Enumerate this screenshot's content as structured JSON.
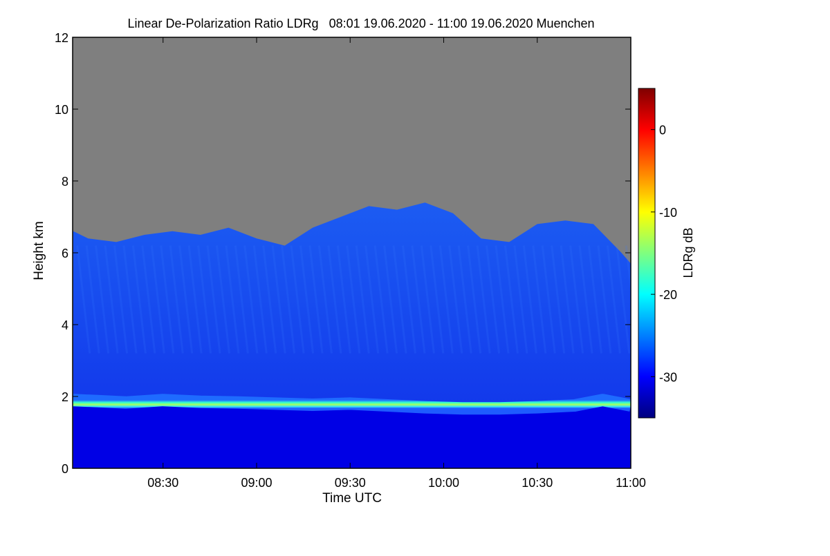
{
  "chart_data": {
    "type": "heatmap",
    "title": "Linear De-Polarization Ratio LDRg   08:01 19.06.2020 - 11:00 19.06.2020 Muenchen",
    "xlabel": "Time UTC",
    "ylabel": "Height km",
    "x_ticks": [
      "08:30",
      "09:00",
      "09:30",
      "10:00",
      "10:30",
      "11:00"
    ],
    "x_tick_hours": [
      8.5,
      9.0,
      9.5,
      10.0,
      10.5,
      11.0
    ],
    "xlim_hours": [
      8.0167,
      11.0
    ],
    "ylim": [
      0,
      12
    ],
    "y_ticks": [
      0,
      2,
      4,
      6,
      8,
      10,
      12
    ],
    "colorbar": {
      "label": "LDRg dB",
      "range": [
        -35,
        5
      ],
      "ticks": [
        0,
        -10,
        -20,
        -30
      ],
      "colormap": [
        "#00007f",
        "#0000ff",
        "#007fff",
        "#00ffff",
        "#7fff7f",
        "#ffff00",
        "#ff7f00",
        "#ff0000",
        "#7f0000"
      ]
    },
    "no_signal_color": "#7f7f7f",
    "features": {
      "cloud_top_km": [
        [
          8.02,
          6.6
        ],
        [
          8.1,
          6.4
        ],
        [
          8.25,
          6.3
        ],
        [
          8.4,
          6.5
        ],
        [
          8.55,
          6.6
        ],
        [
          8.7,
          6.5
        ],
        [
          8.85,
          6.7
        ],
        [
          9.0,
          6.4
        ],
        [
          9.15,
          6.2
        ],
        [
          9.3,
          6.7
        ],
        [
          9.45,
          7.0
        ],
        [
          9.6,
          7.3
        ],
        [
          9.75,
          7.2
        ],
        [
          9.9,
          7.4
        ],
        [
          10.05,
          7.1
        ],
        [
          10.2,
          6.4
        ],
        [
          10.35,
          6.3
        ],
        [
          10.5,
          6.8
        ],
        [
          10.65,
          6.9
        ],
        [
          10.8,
          6.8
        ],
        [
          10.95,
          6.0
        ],
        [
          11.0,
          5.7
        ]
      ],
      "boundary_layer_top_km": [
        [
          8.02,
          1.95
        ],
        [
          8.15,
          1.92
        ],
        [
          8.3,
          1.88
        ],
        [
          8.5,
          1.95
        ],
        [
          8.7,
          1.9
        ],
        [
          8.9,
          1.88
        ],
        [
          9.1,
          1.85
        ],
        [
          9.3,
          1.82
        ],
        [
          9.5,
          1.85
        ],
        [
          9.7,
          1.8
        ],
        [
          9.9,
          1.75
        ],
        [
          10.1,
          1.72
        ],
        [
          10.3,
          1.72
        ],
        [
          10.5,
          1.75
        ],
        [
          10.7,
          1.8
        ],
        [
          10.85,
          1.95
        ],
        [
          11.0,
          1.8
        ]
      ],
      "boundary_layer_ldr_db": -18,
      "cloud_ldr_db": -27,
      "residual_layer_ldr_db": -31
    }
  }
}
